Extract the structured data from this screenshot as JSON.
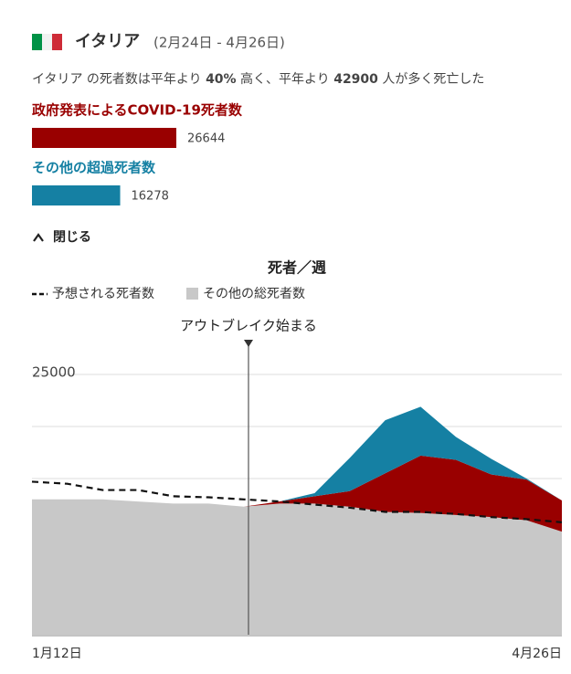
{
  "header": {
    "country": "イタリア",
    "period": "(2月24日 - 4月26日)"
  },
  "summary": [
    "イタリア の死者数は平年より ",
    "40%",
    " 高く、平年より ",
    "42900",
    " 人が多く死亡した"
  ],
  "totals": [
    {
      "label": "政府発表によるCOVID-19死者数",
      "value": 26644,
      "color": "#990000"
    },
    {
      "label": "その他の超過死者数",
      "value": 16278,
      "color": "#1580a3"
    }
  ],
  "toggle": "閉じる",
  "chart_data": {
    "type": "stacked-area",
    "title": "死者／週",
    "categories": [
      "1月12日",
      null,
      null,
      null,
      null,
      null,
      null,
      null,
      null,
      null,
      null,
      null,
      null,
      null,
      null,
      "4月26日"
    ],
    "series": [
      {
        "name": "その他の総死者数",
        "color": "#c8c8c8",
        "values": [
          13000,
          13000,
          13000,
          12800,
          12600,
          12600,
          12300,
          12600,
          12600,
          12300,
          11800,
          11700,
          11500,
          11300,
          11000,
          9900
        ]
      },
      {
        "color": "#990000",
        "values": [
          0,
          0,
          0,
          0,
          0,
          0,
          0,
          200,
          700,
          1500,
          3700,
          5500,
          5300,
          4100,
          3900,
          3000
        ]
      },
      {
        "color": "#1580a3",
        "values": [
          0,
          0,
          0,
          0,
          0,
          0,
          0,
          0,
          300,
          3200,
          5100,
          4700,
          2200,
          1500,
          100,
          0
        ]
      }
    ],
    "expected": {
      "name": "予想される死者数",
      "values": [
        14700,
        14500,
        13900,
        13900,
        13300,
        13200,
        13000,
        12800,
        12500,
        12200,
        11800,
        11800,
        11600,
        11300,
        11100,
        10800
      ]
    },
    "annotation": {
      "text": "アウトブレイク始まる",
      "category_index": 6
    },
    "ylim": [
      0,
      25000
    ],
    "yticks": [
      25000
    ],
    "gridlines": [
      5000,
      10000,
      15000,
      20000,
      25000
    ]
  }
}
